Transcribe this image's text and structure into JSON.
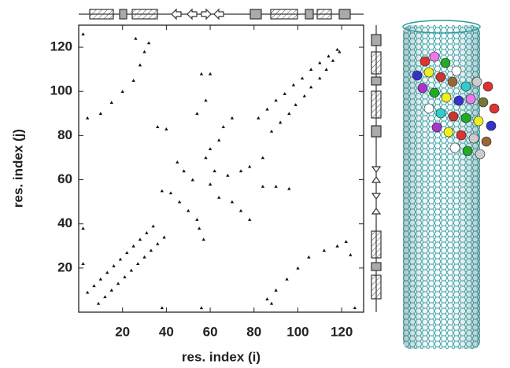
{
  "chart_data": {
    "type": "scatter",
    "x_label": "res. index (i)",
    "y_label": "res. index (j)",
    "xlim": [
      0,
      130
    ],
    "ylim": [
      0,
      130
    ],
    "xticks": [
      20,
      40,
      60,
      80,
      100,
      120
    ],
    "yticks": [
      20,
      40,
      60,
      80,
      100,
      120
    ],
    "grid": false,
    "series": [
      {
        "color": "#111111",
        "x": [
          4,
          7,
          10,
          13,
          16,
          19,
          22,
          25,
          28,
          31,
          34,
          9,
          12,
          15,
          18,
          21,
          24,
          27,
          30,
          33,
          36,
          39,
          82,
          86,
          90,
          94,
          98,
          102,
          106,
          110,
          114,
          118,
          88,
          92,
          96,
          99,
          103,
          106,
          110,
          113,
          116,
          119,
          4,
          10,
          15,
          20,
          25,
          28,
          30,
          26,
          32,
          2,
          88,
          90,
          95,
          100,
          105,
          112,
          118,
          124,
          122,
          126,
          38,
          42,
          46,
          50,
          54,
          55,
          57,
          52,
          48,
          45,
          58,
          60,
          64,
          66,
          70,
          62,
          68,
          74,
          78,
          84,
          60,
          64,
          70,
          74,
          78,
          36,
          40,
          54,
          58,
          60,
          84,
          90,
          96,
          56,
          2,
          2,
          38,
          56,
          86
        ],
        "y": [
          9,
          12,
          15,
          18,
          21,
          24,
          27,
          30,
          33,
          36,
          39,
          4,
          7,
          10,
          13,
          16,
          19,
          22,
          25,
          28,
          31,
          34,
          88,
          92,
          96,
          99,
          103,
          106,
          110,
          113,
          116,
          119,
          82,
          86,
          90,
          94,
          98,
          102,
          106,
          110,
          114,
          118,
          88,
          90,
          95,
          100,
          105,
          112,
          118,
          124,
          122,
          126,
          4,
          10,
          15,
          20,
          25,
          28,
          30,
          26,
          32,
          2,
          55,
          54,
          50,
          46,
          42,
          38,
          33,
          60,
          64,
          68,
          70,
          74,
          78,
          84,
          88,
          64,
          62,
          64,
          66,
          70,
          58,
          52,
          50,
          46,
          42,
          84,
          83,
          90,
          96,
          108,
          57,
          57,
          56,
          108,
          38,
          22,
          2,
          2,
          6
        ]
      }
    ]
  }
}
